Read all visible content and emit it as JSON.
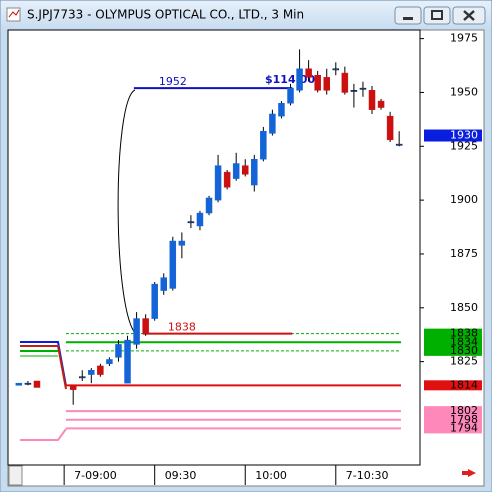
{
  "window_title": "S.JPJ7733 - OLYMPUS OPTICAL CO., LTD., 3 Min",
  "chart_data": {
    "type": "candlestick",
    "x": [
      0,
      1,
      2,
      3,
      4,
      5,
      6,
      7,
      8,
      9,
      10,
      11,
      12,
      13,
      14,
      15,
      16,
      17,
      18,
      19,
      20,
      21,
      22,
      23,
      24,
      25,
      26,
      27,
      28,
      29,
      30,
      31,
      32,
      33,
      34,
      35,
      36,
      37,
      38,
      39,
      40,
      41,
      42
    ],
    "open": [
      1814,
      1815,
      1816,
      null,
      null,
      null,
      1814,
      1818,
      1819,
      1823,
      1824,
      1827,
      1815,
      1833,
      1845,
      1845,
      1858,
      1859,
      1879,
      1890,
      1888,
      1894,
      1900,
      1913,
      1910,
      1916,
      1907,
      1919,
      1931,
      1939,
      1945,
      1951,
      1961,
      1958,
      1957,
      1961,
      1959,
      1951,
      1952,
      1951,
      1946,
      1939,
      1926
    ],
    "high": [
      1815,
      1816,
      1816,
      null,
      null,
      null,
      1814,
      1821,
      1822,
      1824,
      1827,
      1835,
      1837,
      1848,
      1847,
      1862,
      1866,
      1883,
      1885,
      1893,
      1895,
      1902,
      1921,
      1914,
      1922,
      1919,
      1921,
      1934,
      1942,
      1946,
      1954,
      1970,
      1965,
      1960,
      1961,
      1964,
      1962,
      1954,
      1955,
      1953,
      1947,
      1941,
      1932
    ],
    "low": [
      1814,
      1814,
      1813,
      null,
      null,
      null,
      1805,
      1816,
      1815,
      1818,
      1823,
      1825,
      1815,
      1831,
      1837,
      1844,
      1856,
      1858,
      1873,
      1887,
      1886,
      1893,
      1899,
      1905,
      1909,
      1911,
      1904,
      1918,
      1930,
      1938,
      1944,
      1950,
      1955,
      1950,
      1949,
      1958,
      1949,
      1943,
      1948,
      1940,
      1942,
      1927,
      1925
    ],
    "close": [
      1815,
      1815,
      1813,
      null,
      null,
      null,
      1812,
      1818,
      1821,
      1819,
      1826,
      1833,
      1835,
      1845,
      1838,
      1861,
      1864,
      1881,
      1881,
      1890,
      1894,
      1901,
      1916,
      1906,
      1917,
      1912,
      1919,
      1932,
      1940,
      1945,
      1952,
      1961,
      1957,
      1951,
      1951,
      1961,
      1950,
      1951,
      1952,
      1942,
      1943,
      1928,
      1926
    ],
    "up_color": "#1464d8",
    "down_color": "#cc1010",
    "xlim": [
      -1.2,
      44.3
    ],
    "xticks": [
      {
        "value": 5,
        "label": "7-09:00"
      },
      {
        "value": 15,
        "label": "09:30"
      },
      {
        "value": 25,
        "label": "10:00"
      },
      {
        "value": 35,
        "label": "7-10:30"
      }
    ],
    "ylim": [
      1777,
      1979
    ],
    "yticks": [
      1825,
      1850,
      1875,
      1900,
      1925,
      1950,
      1975
    ],
    "last_price": 1930,
    "last_price_color": "#0a1ee0",
    "levels": [
      {
        "value": 1838,
        "color": "#00b000",
        "dashed": true
      },
      {
        "value": 1834,
        "color": "#00b000",
        "dashed": false
      },
      {
        "value": 1830,
        "color": "#00b000",
        "dashed": true
      },
      {
        "value": 1814,
        "color": "#e01010",
        "dashed": false
      },
      {
        "value": 1802,
        "color": "#ff88bb",
        "dashed": false
      },
      {
        "value": 1798,
        "color": "#ff88bb",
        "dashed": false
      },
      {
        "value": 1794,
        "color": "#ff88bb",
        "dashed": false
      }
    ],
    "annotations": [
      {
        "text": "1952",
        "value": 1952,
        "color": "#1010c0"
      },
      {
        "text": "1838",
        "value": 1838,
        "color": "#cc1010"
      }
    ],
    "measure_label": "$114.00"
  }
}
